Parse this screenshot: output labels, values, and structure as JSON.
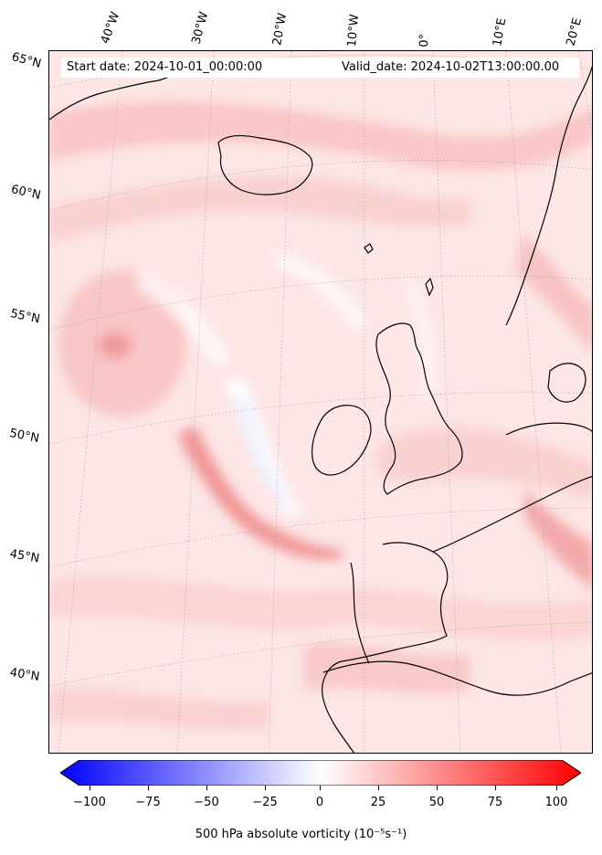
{
  "header": {
    "start_date": "Start date: 2024-10-01_00:00:00",
    "valid_date": "Valid_date: 2024-10-02T13:00:00.00"
  },
  "longitude_labels": [
    "40°W",
    "30°W",
    "20°W",
    "10°W",
    "0°",
    "10°E",
    "20°E"
  ],
  "latitude_labels": [
    "65°N",
    "60°N",
    "55°N",
    "50°N",
    "45°N",
    "40°N"
  ],
  "colorbar": {
    "label": "500 hPa absolute vorticity (10⁻⁵s⁻¹)",
    "ticks": [
      "−100",
      "−75",
      "−50",
      "−25",
      "0",
      "25",
      "50",
      "75",
      "100"
    ],
    "range": [
      -100,
      100
    ],
    "colormap": "bwr",
    "low_color": "#0000ff",
    "mid_color": "#ffffff",
    "high_color": "#ff0000"
  },
  "map": {
    "field": "500 hPa absolute vorticity",
    "region": "North Atlantic and Western Europe",
    "coastline_color": "#000000",
    "gridline_color": "#b0b0b0"
  }
}
